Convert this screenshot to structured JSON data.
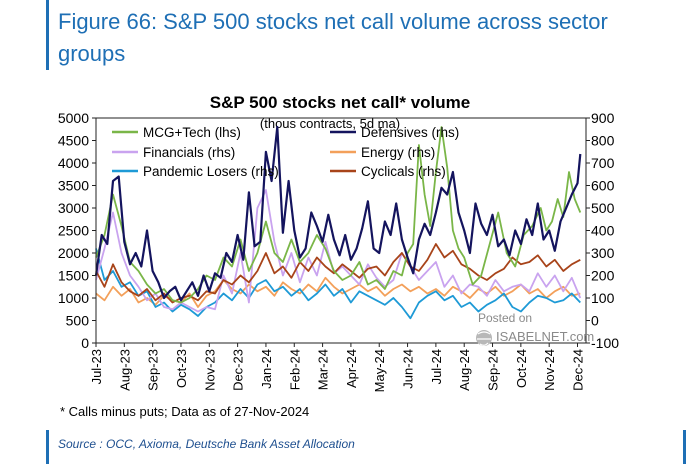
{
  "figure_title": "Figure 66: S&P 500 stocks net call volume across sector groups",
  "source": "Source : OCC, Axioma, Deutsche Bank Asset Allocation",
  "watermark": {
    "line1": "Posted on",
    "line2": "ISABELNET.com"
  },
  "colors": {
    "accent": "#1e6fb5",
    "MCG+Tech": "#7ab648",
    "Defensives": "#14145e",
    "Financials": "#c9a3ef",
    "Energy": "#f3a05a",
    "Pandemic Losers": "#1e9ad6",
    "Cyclicals": "#a8441a"
  },
  "chart_data": {
    "type": "line",
    "title": "S&P 500 stocks net call* volume",
    "subtitle": "(thous contracts, 5d ma)",
    "footnote": "* Calls minus puts; Data as of 27-Nov-2024",
    "left_axis": {
      "ticks": [
        "0",
        "500",
        "1000",
        "1500",
        "2000",
        "2500",
        "3000",
        "3500",
        "4000",
        "4500",
        "5000"
      ],
      "range": [
        0,
        5000
      ]
    },
    "right_axis": {
      "ticks": [
        "-100",
        "0",
        "100",
        "200",
        "300",
        "400",
        "500",
        "600",
        "700",
        "800",
        "900"
      ],
      "range": [
        -100,
        900
      ]
    },
    "x_ticks": [
      "Jul-23",
      "Aug-23",
      "Sep-23",
      "Oct-23",
      "Nov-23",
      "Dec-23",
      "Jan-24",
      "Feb-24",
      "Mar-24",
      "Apr-24",
      "May-24",
      "Jun-24",
      "Jul-24",
      "Aug-24",
      "Sep-24",
      "Oct-24",
      "Nov-24",
      "Dec-24"
    ],
    "x_range_months": [
      0,
      17.3
    ],
    "legend": [
      "MCG+Tech (lhs)",
      "Defensives (rhs)",
      "Financials (rhs)",
      "Energy (rhs)",
      "Pandemic Losers (rhs)",
      "Cyclicals (rhs)"
    ],
    "series": [
      {
        "name": "MCG+Tech",
        "axis": "lhs",
        "x": [
          0,
          0.3,
          0.6,
          0.9,
          1.2,
          1.5,
          1.8,
          2.1,
          2.4,
          2.7,
          3,
          3.3,
          3.6,
          3.9,
          4.2,
          4.5,
          4.8,
          5.1,
          5.4,
          5.7,
          6,
          6.3,
          6.6,
          6.9,
          7.2,
          7.5,
          7.8,
          8.1,
          8.4,
          8.7,
          9,
          9.3,
          9.6,
          9.9,
          10.2,
          10.5,
          10.8,
          11,
          11.2,
          11.4,
          11.6,
          11.8,
          12,
          12.2,
          12.4,
          12.6,
          12.8,
          13,
          13.3,
          13.6,
          13.9,
          14.2,
          14.5,
          14.8,
          15.1,
          15.4,
          15.7,
          15.9,
          16.1,
          16.3,
          16.5,
          16.7,
          16.9,
          17.1
        ],
        "values": [
          1900,
          2400,
          3300,
          2600,
          1800,
          1600,
          1300,
          1100,
          1200,
          950,
          900,
          1000,
          1200,
          1500,
          1400,
          1900,
          1700,
          2300,
          1600,
          2000,
          2700,
          2000,
          1800,
          2300,
          1800,
          2000,
          2400,
          2100,
          1600,
          1400,
          1500,
          1800,
          1300,
          1400,
          1200,
          1600,
          1500,
          2000,
          2200,
          4400,
          3300,
          2600,
          3800,
          4800,
          3900,
          2500,
          2100,
          1900,
          1300,
          1500,
          2200,
          2900,
          2000,
          1700,
          2400,
          2600,
          3000,
          2500,
          2700,
          3200,
          2800,
          3800,
          3200,
          2900
        ]
      },
      {
        "name": "Defensives",
        "axis": "rhs",
        "x": [
          0,
          0.2,
          0.4,
          0.6,
          0.8,
          1,
          1.2,
          1.4,
          1.6,
          1.8,
          2,
          2.2,
          2.4,
          2.6,
          2.8,
          3,
          3.2,
          3.4,
          3.6,
          3.8,
          4,
          4.2,
          4.4,
          4.6,
          4.8,
          5,
          5.2,
          5.4,
          5.6,
          5.8,
          6,
          6.2,
          6.4,
          6.6,
          6.8,
          7,
          7.2,
          7.4,
          7.6,
          7.8,
          8,
          8.2,
          8.4,
          8.6,
          8.8,
          9,
          9.2,
          9.4,
          9.6,
          9.8,
          10,
          10.2,
          10.4,
          10.6,
          10.8,
          11,
          11.2,
          11.4,
          11.6,
          11.8,
          12,
          12.2,
          12.4,
          12.6,
          12.8,
          13,
          13.2,
          13.4,
          13.6,
          13.8,
          14,
          14.2,
          14.4,
          14.6,
          14.8,
          15,
          15.2,
          15.4,
          15.6,
          15.8,
          16,
          16.2,
          16.4,
          16.6,
          16.8,
          17,
          17.1
        ],
        "values": [
          200,
          380,
          340,
          620,
          640,
          350,
          250,
          300,
          240,
          400,
          220,
          170,
          100,
          130,
          150,
          90,
          130,
          170,
          110,
          200,
          130,
          210,
          190,
          300,
          260,
          380,
          270,
          570,
          330,
          350,
          750,
          620,
          860,
          390,
          620,
          400,
          280,
          320,
          480,
          420,
          350,
          470,
          360,
          290,
          380,
          270,
          320,
          410,
          530,
          320,
          300,
          440,
          380,
          520,
          360,
          280,
          210,
          360,
          430,
          380,
          480,
          590,
          560,
          660,
          480,
          400,
          300,
          520,
          430,
          380,
          470,
          330,
          360,
          290,
          400,
          340,
          450,
          380,
          520,
          360,
          400,
          310,
          440,
          500,
          560,
          610,
          740
        ]
      },
      {
        "name": "Financials",
        "axis": "rhs",
        "x": [
          0,
          0.3,
          0.6,
          0.9,
          1.2,
          1.5,
          1.8,
          2.1,
          2.4,
          2.7,
          3,
          3.3,
          3.6,
          3.9,
          4.2,
          4.5,
          4.8,
          5.1,
          5.4,
          5.7,
          6,
          6.3,
          6.6,
          6.9,
          7.2,
          7.5,
          7.8,
          8.1,
          8.4,
          8.7,
          9,
          9.3,
          9.6,
          9.9,
          10.2,
          10.5,
          10.8,
          11.1,
          11.4,
          11.7,
          12,
          12.3,
          12.6,
          12.9,
          13.2,
          13.5,
          13.8,
          14.1,
          14.4,
          14.7,
          15,
          15.3,
          15.6,
          15.9,
          16.2,
          16.5,
          16.8,
          17.1
        ],
        "values": [
          180,
          320,
          480,
          300,
          200,
          150,
          90,
          120,
          60,
          50,
          80,
          60,
          40,
          60,
          50,
          200,
          120,
          300,
          80,
          500,
          580,
          350,
          200,
          300,
          170,
          280,
          200,
          350,
          210,
          240,
          200,
          160,
          250,
          190,
          150,
          180,
          300,
          240,
          180,
          220,
          260,
          150,
          200,
          120,
          160,
          150,
          110,
          180,
          130,
          150,
          160,
          130,
          210,
          150,
          200,
          130,
          190,
          100
        ]
      },
      {
        "name": "Energy",
        "axis": "rhs",
        "x": [
          0,
          0.3,
          0.6,
          0.9,
          1.2,
          1.5,
          1.8,
          2.1,
          2.4,
          2.7,
          3,
          3.3,
          3.6,
          3.9,
          4.2,
          4.5,
          4.8,
          5.1,
          5.4,
          5.7,
          6,
          6.3,
          6.6,
          6.9,
          7.2,
          7.5,
          7.8,
          8.1,
          8.4,
          8.7,
          9,
          9.3,
          9.6,
          9.9,
          10.2,
          10.5,
          10.8,
          11.1,
          11.4,
          11.7,
          12,
          12.3,
          12.6,
          12.9,
          13.2,
          13.5,
          13.8,
          14.1,
          14.4,
          14.7,
          15,
          15.3,
          15.6,
          15.9,
          16.2,
          16.5,
          16.8,
          17.1
        ],
        "values": [
          120,
          90,
          150,
          110,
          140,
          80,
          100,
          70,
          110,
          90,
          80,
          120,
          60,
          110,
          130,
          180,
          140,
          120,
          160,
          130,
          150,
          110,
          170,
          140,
          120,
          160,
          130,
          190,
          150,
          120,
          140,
          160,
          130,
          150,
          110,
          140,
          160,
          130,
          150,
          120,
          140,
          110,
          150,
          130,
          100,
          140,
          120,
          150,
          110,
          130,
          160,
          120,
          140,
          100,
          130,
          150,
          110,
          120
        ]
      },
      {
        "name": "Pandemic Losers",
        "axis": "rhs",
        "x": [
          0,
          0.3,
          0.6,
          0.9,
          1.2,
          1.5,
          1.8,
          2.1,
          2.4,
          2.7,
          3,
          3.3,
          3.6,
          3.9,
          4.2,
          4.5,
          4.8,
          5.1,
          5.4,
          5.7,
          6,
          6.3,
          6.6,
          6.9,
          7.2,
          7.5,
          7.8,
          8.1,
          8.4,
          8.7,
          9,
          9.3,
          9.6,
          9.9,
          10.2,
          10.5,
          10.8,
          11.1,
          11.4,
          11.7,
          12,
          12.3,
          12.6,
          12.9,
          13.2,
          13.5,
          13.8,
          14.1,
          14.4,
          14.7,
          15,
          15.3,
          15.6,
          15.9,
          16.2,
          16.5,
          16.8,
          17.1
        ],
        "values": [
          320,
          180,
          220,
          150,
          170,
          110,
          130,
          60,
          80,
          40,
          70,
          50,
          20,
          60,
          80,
          120,
          90,
          140,
          100,
          160,
          180,
          130,
          150,
          110,
          140,
          90,
          120,
          160,
          110,
          140,
          80,
          130,
          110,
          90,
          70,
          100,
          60,
          10,
          80,
          110,
          130,
          90,
          110,
          60,
          80,
          40,
          70,
          90,
          120,
          60,
          40,
          80,
          110,
          100,
          80,
          90,
          120,
          80
        ]
      },
      {
        "name": "Cyclicals",
        "axis": "rhs",
        "x": [
          0,
          0.3,
          0.6,
          0.9,
          1.2,
          1.5,
          1.8,
          2.1,
          2.4,
          2.7,
          3,
          3.3,
          3.6,
          3.9,
          4.2,
          4.5,
          4.8,
          5.1,
          5.4,
          5.7,
          6,
          6.3,
          6.6,
          6.9,
          7.2,
          7.5,
          7.8,
          8.1,
          8.4,
          8.7,
          9,
          9.3,
          9.6,
          9.9,
          10.2,
          10.5,
          10.8,
          11.1,
          11.4,
          11.7,
          12,
          12.3,
          12.6,
          12.9,
          13.2,
          13.5,
          13.8,
          14.1,
          14.4,
          14.7,
          15,
          15.3,
          15.6,
          15.9,
          16.2,
          16.5,
          16.8,
          17.1
        ],
        "values": [
          220,
          150,
          250,
          170,
          130,
          110,
          140,
          90,
          120,
          80,
          100,
          110,
          90,
          130,
          120,
          180,
          160,
          200,
          170,
          220,
          300,
          210,
          240,
          190,
          260,
          220,
          280,
          240,
          210,
          250,
          220,
          190,
          230,
          240,
          200,
          260,
          300,
          240,
          220,
          270,
          340,
          280,
          310,
          250,
          230,
          200,
          180,
          210,
          230,
          280,
          250,
          260,
          290,
          240,
          270,
          220,
          250,
          270
        ]
      }
    ]
  }
}
